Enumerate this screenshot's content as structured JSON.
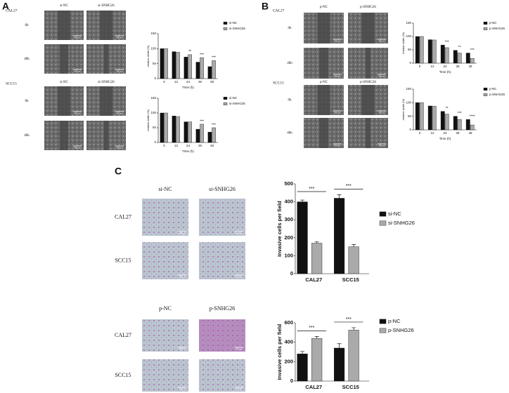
{
  "figure": {
    "scale_bar": "400 μm",
    "panels": [
      {
        "label": "A",
        "groups": [
          {
            "name": "CAL27",
            "columns": [
              "si-NC",
              "si-SNHG26"
            ],
            "rows": [
              "0h",
              "48h"
            ]
          },
          {
            "name": "SCC15",
            "columns": [
              "si-NC",
              "si-SNHG26"
            ],
            "rows": [
              "0h",
              "48h"
            ]
          }
        ]
      },
      {
        "label": "B",
        "groups": [
          {
            "name": "CAL27",
            "columns": [
              "p-NC",
              "p-SNHG26"
            ],
            "rows": [
              "0h",
              "48h"
            ]
          },
          {
            "name": "SCC15",
            "columns": [
              "p-NC",
              "p-SNHG26"
            ],
            "rows": [
              "0h",
              "48h"
            ]
          }
        ]
      },
      {
        "label": "C",
        "groups": [
          {
            "columns": [
              "si-NC",
              "si-SNHG26"
            ],
            "rows": [
              "CAL27",
              "SCC15"
            ]
          },
          {
            "columns": [
              "p-NC",
              "p-SNHG26"
            ],
            "rows": [
              "CAL27",
              "SCC15"
            ]
          }
        ]
      }
    ]
  },
  "chart_data": [
    {
      "type": "bar",
      "xlabel": "Time (h)",
      "ylabel": "relative width (%)",
      "categories": [
        "0",
        "12",
        "24",
        "36",
        "48"
      ],
      "ylim": [
        0,
        150
      ],
      "yticks": [
        0,
        50,
        100,
        150
      ],
      "series": [
        {
          "name": "si-NC",
          "color": "#111111",
          "values": [
            100,
            90,
            72,
            55,
            40
          ]
        },
        {
          "name": "si-SNHG26",
          "color": "#aaaaaa",
          "values": [
            100,
            88,
            80,
            70,
            60
          ]
        }
      ],
      "annotations": [
        {
          "text": "**",
          "category": "24"
        },
        {
          "text": "***",
          "category": "36"
        },
        {
          "text": "***",
          "category": "48"
        }
      ]
    },
    {
      "type": "bar",
      "xlabel": "Time (h)",
      "ylabel": "relative width (%)",
      "categories": [
        "0",
        "12",
        "24",
        "36",
        "48"
      ],
      "ylim": [
        0,
        150
      ],
      "yticks": [
        0,
        50,
        100,
        150
      ],
      "series": [
        {
          "name": "si-NC",
          "color": "#111111",
          "values": [
            100,
            90,
            70,
            45,
            35
          ]
        },
        {
          "name": "si-SNHG26",
          "color": "#aaaaaa",
          "values": [
            100,
            88,
            70,
            62,
            50
          ]
        }
      ],
      "annotations": [
        {
          "text": "***",
          "category": "36"
        },
        {
          "text": "***",
          "category": "48"
        }
      ]
    },
    {
      "type": "bar",
      "xlabel": "Time (h)",
      "ylabel": "relative width (%)",
      "categories": [
        "0",
        "12",
        "24",
        "36",
        "48"
      ],
      "ylim": [
        0,
        150
      ],
      "yticks": [
        0,
        50,
        100,
        150
      ],
      "series": [
        {
          "name": "p-NC",
          "color": "#111111",
          "values": [
            100,
            88,
            68,
            48,
            38
          ]
        },
        {
          "name": "p-SNHG26",
          "color": "#aaaaaa",
          "values": [
            100,
            87,
            58,
            38,
            18
          ]
        }
      ],
      "annotations": [
        {
          "text": "***",
          "category": "24"
        },
        {
          "text": "**",
          "category": "36"
        },
        {
          "text": "***",
          "category": "48"
        }
      ]
    },
    {
      "type": "bar",
      "xlabel": "Time (h)",
      "ylabel": "relative width (%)",
      "categories": [
        "0",
        "12",
        "24",
        "36",
        "48"
      ],
      "ylim": [
        0,
        150
      ],
      "yticks": [
        0,
        50,
        100,
        150
      ],
      "series": [
        {
          "name": "p-NC",
          "color": "#111111",
          "values": [
            100,
            88,
            68,
            50,
            38
          ]
        },
        {
          "name": "p-SNHG26",
          "color": "#aaaaaa",
          "values": [
            100,
            87,
            58,
            38,
            18
          ]
        }
      ],
      "annotations": [
        {
          "text": "**",
          "category": "24"
        },
        {
          "text": "***",
          "category": "36"
        },
        {
          "text": "****",
          "category": "48"
        }
      ]
    },
    {
      "type": "bar",
      "ylabel": "Invasive cells per field",
      "categories": [
        "CAL27",
        "SCC15"
      ],
      "ylim": [
        0,
        500
      ],
      "yticks": [
        0,
        100,
        200,
        300,
        400,
        500
      ],
      "series": [
        {
          "name": "si-NC",
          "color": "#111111",
          "values": [
            400,
            420
          ],
          "errors": [
            10,
            20
          ]
        },
        {
          "name": "si-SNHG26",
          "color": "#aaaaaa",
          "values": [
            170,
            150
          ],
          "errors": [
            8,
            12
          ]
        }
      ],
      "annotations": [
        {
          "text": "***",
          "category": "CAL27"
        },
        {
          "text": "***",
          "category": "SCC15"
        }
      ]
    },
    {
      "type": "bar",
      "ylabel": "Invasive cells per field",
      "categories": [
        "CAL27",
        "SCC15"
      ],
      "ylim": [
        0,
        600
      ],
      "yticks": [
        0,
        200,
        400,
        600
      ],
      "series": [
        {
          "name": "p-NC",
          "color": "#111111",
          "values": [
            280,
            340
          ],
          "errors": [
            25,
            45
          ]
        },
        {
          "name": "p-SNHG26",
          "color": "#aaaaaa",
          "values": [
            440,
            525
          ],
          "errors": [
            20,
            25
          ]
        }
      ],
      "annotations": [
        {
          "text": "***",
          "category": "CAL27"
        },
        {
          "text": "***",
          "category": "SCC15"
        }
      ]
    }
  ]
}
